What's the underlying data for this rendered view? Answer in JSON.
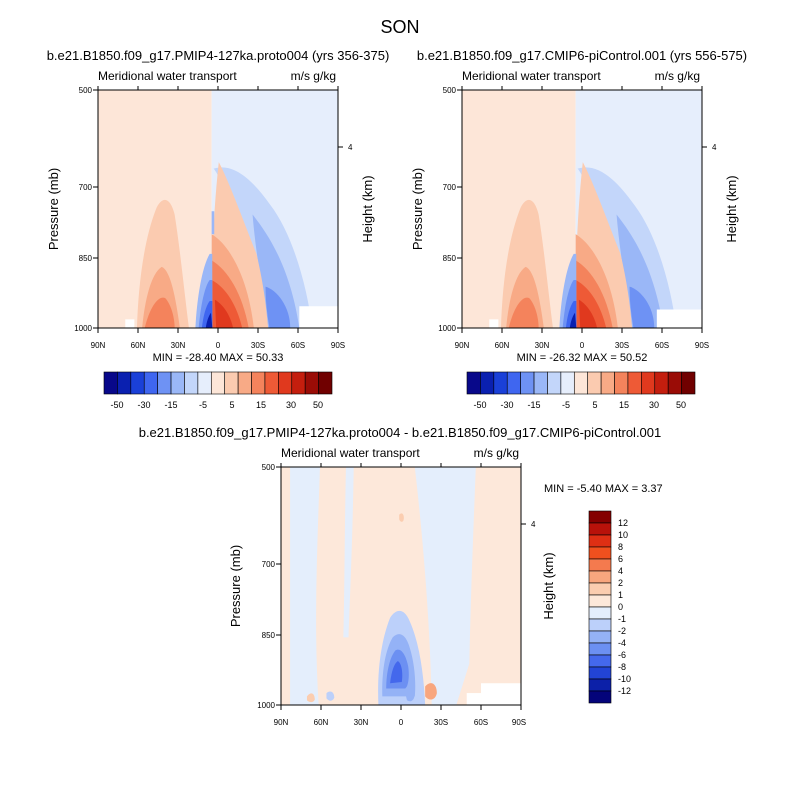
{
  "page": {
    "title": "SON"
  },
  "panels": [
    {
      "title": "b.e21.B1850.f09_g17.PMIP4-127ka.proto004 (yrs 356-375)",
      "left_string": "Meridional water transport",
      "right_string": "m/s g/kg",
      "y_axis_label": "Pressure (mb)",
      "right_axis_label": "Height (km)",
      "stats": "MIN = -28.40  MAX =  50.33"
    },
    {
      "title": "b.e21.B1850.f09_g17.CMIP6-piControl.001 (yrs 556-575)",
      "left_string": "Meridional water transport",
      "right_string": "m/s g/kg",
      "y_axis_label": "Pressure (mb)",
      "right_axis_label": "Height (km)",
      "stats": "MIN = -26.32  MAX =  50.52"
    },
    {
      "title": "b.e21.B1850.f09_g17.PMIP4-127ka.proto004 - b.e21.B1850.f09_g17.CMIP6-piControl.001",
      "left_string": "Meridional water transport",
      "right_string": "m/s g/kg",
      "y_axis_label": "Pressure (mb)",
      "right_axis_label": "Height (km)",
      "stats": "MIN =  -5.40  MAX =   3.37"
    }
  ],
  "axes": {
    "x_ticks": [
      "90N",
      "60N",
      "30N",
      "0",
      "30S",
      "60S",
      "90S"
    ],
    "y_ticks": [
      "500",
      "700",
      "850",
      "1000"
    ],
    "height_ticks": [
      "4"
    ]
  },
  "colorbars": {
    "main": {
      "labels": [
        "-50",
        "-30",
        "-15",
        "-5",
        "5",
        "15",
        "30",
        "50"
      ],
      "colors": [
        "#08088a",
        "#0a20b0",
        "#1a40d8",
        "#3f66f0",
        "#6e92f4",
        "#9ab7f7",
        "#c3d6fa",
        "#e6eefc",
        "#fde6d8",
        "#fbcbb0",
        "#f8aa86",
        "#f4835c",
        "#ee5a36",
        "#e0391e",
        "#c41e0e",
        "#9a0c06",
        "#700000"
      ]
    },
    "diff": {
      "labels": [
        "12",
        "10",
        "8",
        "6",
        "4",
        "2",
        "1",
        "0",
        "-1",
        "-2",
        "-4",
        "-6",
        "-8",
        "-10",
        "-12"
      ],
      "colors": [
        "#840000",
        "#b8120a",
        "#de2f14",
        "#f0501e",
        "#f47a4e",
        "#f8a67e",
        "#fbcdb0",
        "#fde8da",
        "#e4eefc",
        "#bcd0fa",
        "#94b2f6",
        "#6c90f2",
        "#4468ec",
        "#2244d6",
        "#0c20a8",
        "#04047a"
      ]
    }
  },
  "chart_data": [
    {
      "type": "heatmap",
      "title": "b.e21.B1850.f09_g17.PMIP4-127ka.proto004 (yrs 356-375)",
      "ylabel": "Pressure (mb)",
      "xlim": [
        90,
        -90
      ],
      "ylim": [
        1000,
        500
      ],
      "x_ticks": [
        "90N",
        "60N",
        "30N",
        "0",
        "30S",
        "60S",
        "90S"
      ],
      "y_ticks": [
        500,
        700,
        850,
        1000
      ],
      "min": -28.4,
      "max": 50.33,
      "contour_levels": [
        -50,
        -40,
        -30,
        -20,
        -15,
        -10,
        -5,
        -2.5,
        0,
        2.5,
        5,
        10,
        15,
        20,
        30,
        40,
        50
      ]
    },
    {
      "type": "heatmap",
      "title": "b.e21.B1850.f09_g17.CMIP6-piControl.001 (yrs 556-575)",
      "ylabel": "Pressure (mb)",
      "xlim": [
        90,
        -90
      ],
      "ylim": [
        1000,
        500
      ],
      "x_ticks": [
        "90N",
        "60N",
        "30N",
        "0",
        "30S",
        "60S",
        "90S"
      ],
      "y_ticks": [
        500,
        700,
        850,
        1000
      ],
      "min": -26.32,
      "max": 50.52,
      "contour_levels": [
        -50,
        -40,
        -30,
        -20,
        -15,
        -10,
        -5,
        -2.5,
        0,
        2.5,
        5,
        10,
        15,
        20,
        30,
        40,
        50
      ]
    },
    {
      "type": "heatmap",
      "title": "b.e21.B1850.f09_g17.PMIP4-127ka.proto004 - b.e21.B1850.f09_g17.CMIP6-piControl.001",
      "ylabel": "Pressure (mb)",
      "xlim": [
        90,
        -90
      ],
      "ylim": [
        1000,
        500
      ],
      "x_ticks": [
        "90N",
        "60N",
        "30N",
        "0",
        "30S",
        "60S",
        "90S"
      ],
      "y_ticks": [
        500,
        700,
        850,
        1000
      ],
      "min": -5.4,
      "max": 3.37,
      "contour_levels": [
        -12,
        -10,
        -8,
        -6,
        -4,
        -2,
        -1,
        0,
        1,
        2,
        4,
        6,
        8,
        10,
        12
      ]
    }
  ]
}
